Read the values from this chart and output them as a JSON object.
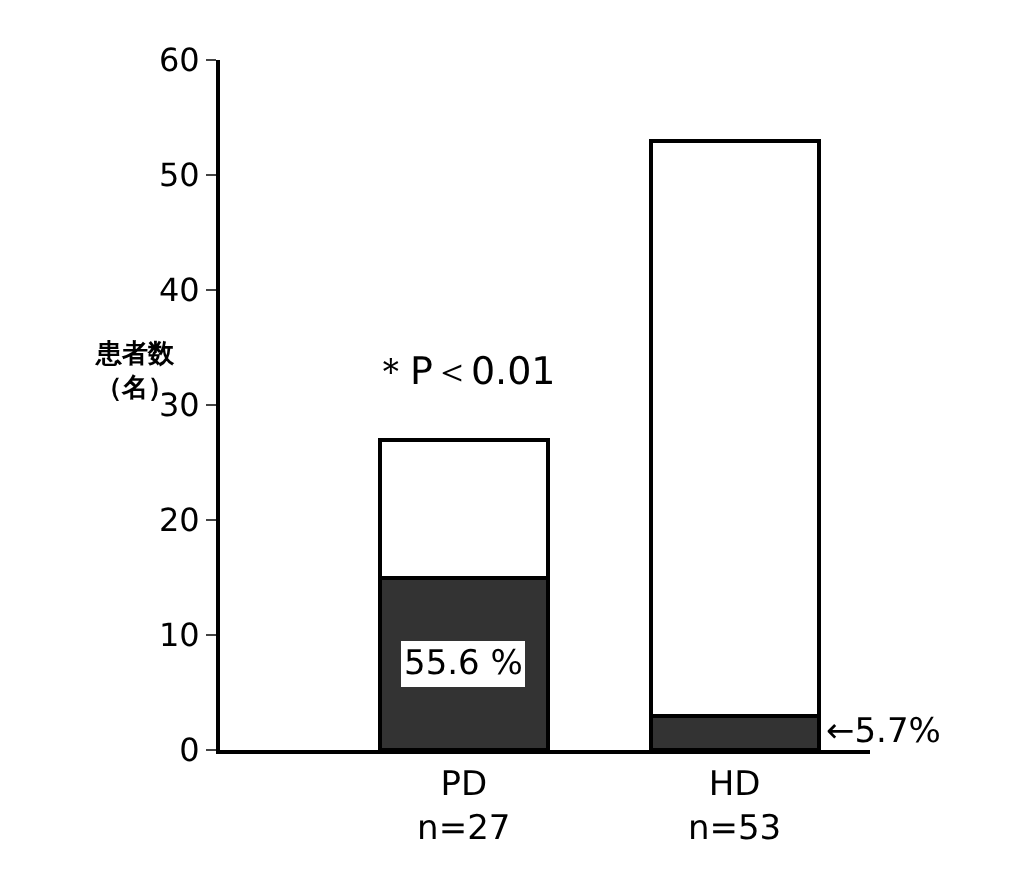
{
  "chart_data": {
    "type": "bar",
    "stacked": true,
    "ylabel": "患者数（名）",
    "categories": [
      "PD\nn=27",
      "HD\nn=53"
    ],
    "series": [
      {
        "color": "#333333",
        "values": [
          15,
          3
        ]
      },
      {
        "color": "#ffffff",
        "values": [
          12,
          50
        ]
      }
    ],
    "annotations": [
      "＊P＜0.01",
      "55.6 %",
      "←5.7%"
    ],
    "ylim": [
      0,
      60
    ],
    "yticks": [
      0,
      10,
      20,
      30,
      40,
      50,
      60
    ]
  }
}
